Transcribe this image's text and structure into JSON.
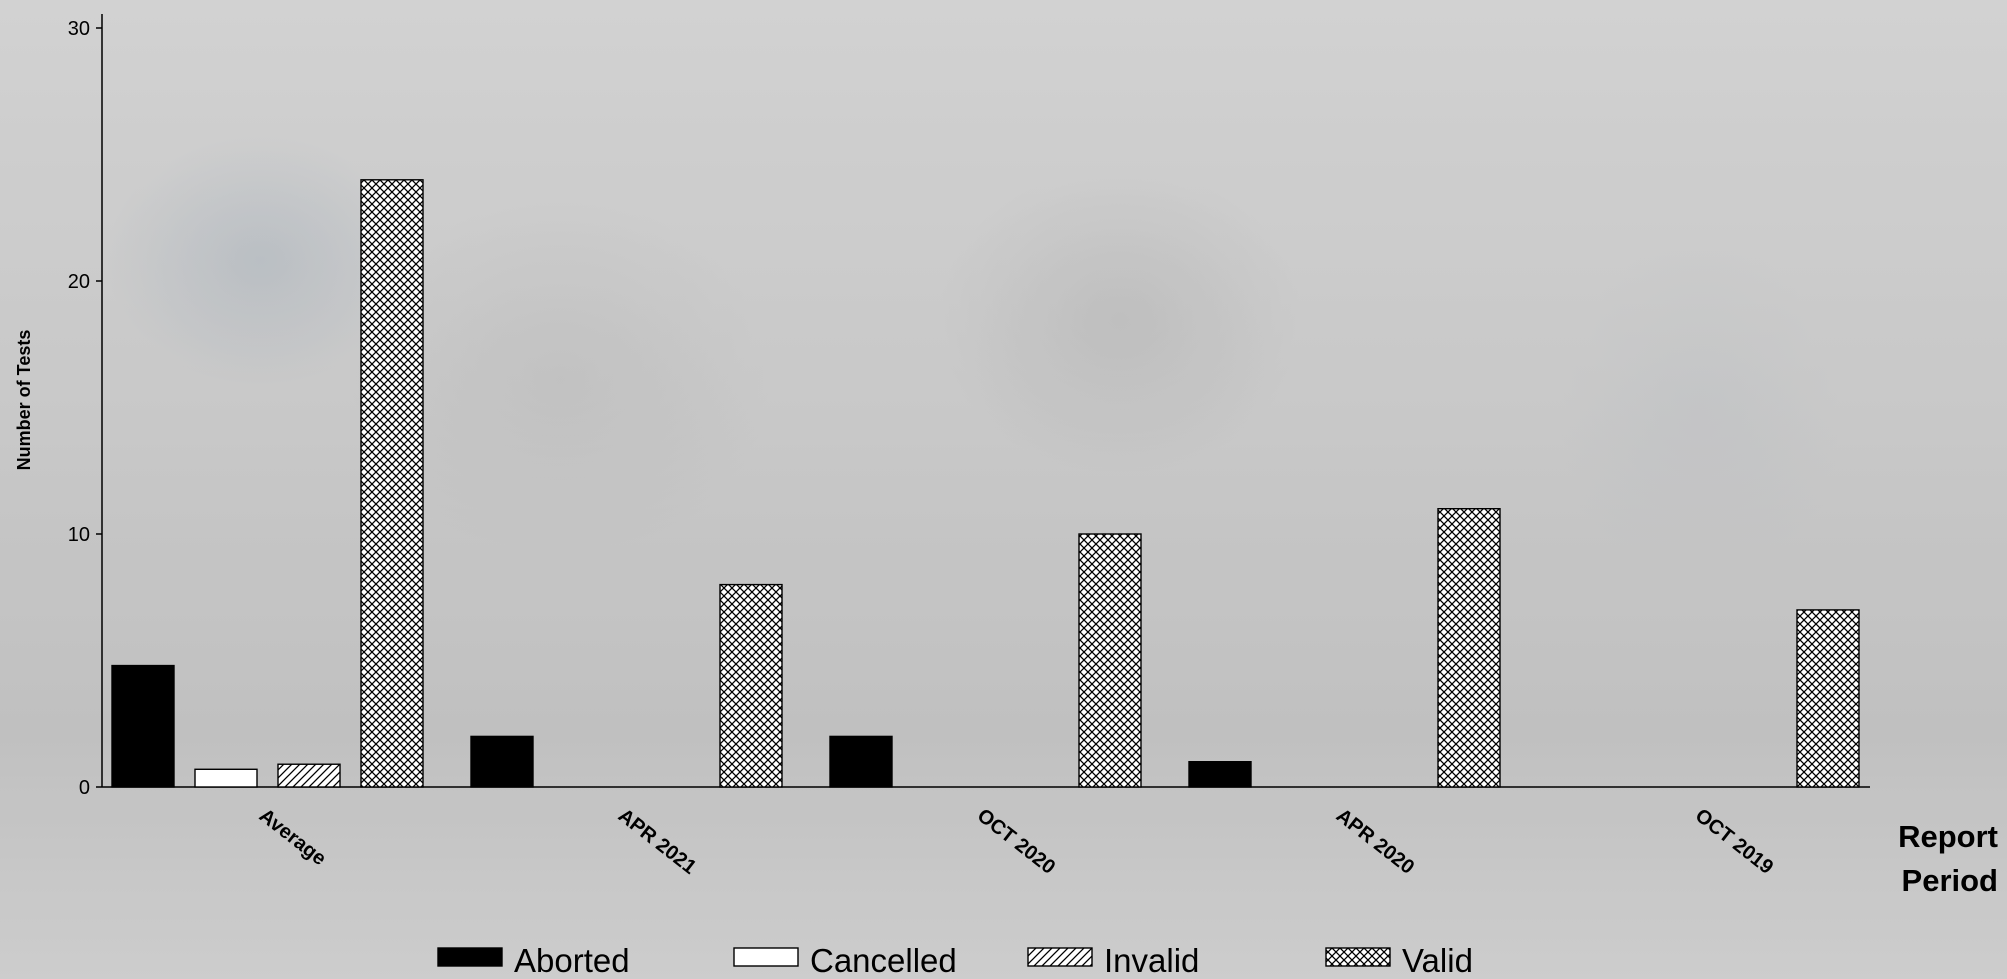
{
  "chart_data": {
    "type": "bar",
    "title": "",
    "xlabel": "Report Period",
    "ylabel": "Number of Tests",
    "ylim": [
      0,
      30
    ],
    "yticks": [
      "0",
      "10",
      "20",
      "30"
    ],
    "categories": [
      "Average",
      "APR 2021",
      "OCT 2020",
      "APR 2020",
      "OCT 2019"
    ],
    "series": [
      {
        "name": "Aborted",
        "values": [
          4.8,
          2,
          2,
          1,
          0
        ],
        "pattern": "solid"
      },
      {
        "name": "Cancelled",
        "values": [
          0.7,
          0,
          0,
          0,
          0
        ],
        "pattern": "empty"
      },
      {
        "name": "Invalid",
        "values": [
          0.9,
          0,
          0,
          0,
          0
        ],
        "pattern": "diagonal"
      },
      {
        "name": "Valid",
        "values": [
          24,
          8,
          10,
          11,
          7
        ],
        "pattern": "crosshatch"
      }
    ],
    "legend_position": "bottom",
    "grid": false
  }
}
